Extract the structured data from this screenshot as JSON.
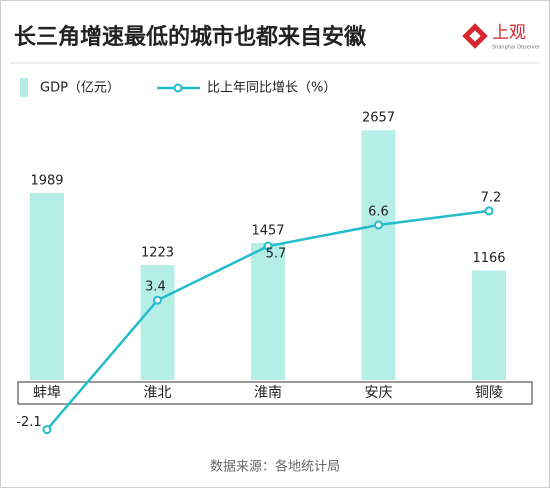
{
  "logo": {
    "name": "上观",
    "subtitle": "Shanghai Observer"
  },
  "chart_data": {
    "type": "bar-line",
    "title": "长三角增速最低的城市也都来自安徽",
    "categories": [
      "蚌埠",
      "淮北",
      "淮南",
      "安庆",
      "铜陵"
    ],
    "series": [
      {
        "name": "GDP（亿元）",
        "type": "bar",
        "color": "#b5ede7",
        "values": [
          1989,
          1223,
          1457,
          2657,
          1166
        ]
      },
      {
        "name": "比上年同比增长（%）",
        "type": "line",
        "axis": "y2",
        "color": "#22bccb",
        "values": [
          -2.1,
          3.4,
          5.7,
          6.6,
          7.2
        ]
      }
    ],
    "ylim": [
      0,
      3000
    ],
    "y2lim": [
      -2.5,
      12
    ],
    "source": "数据来源：各地统计局"
  }
}
